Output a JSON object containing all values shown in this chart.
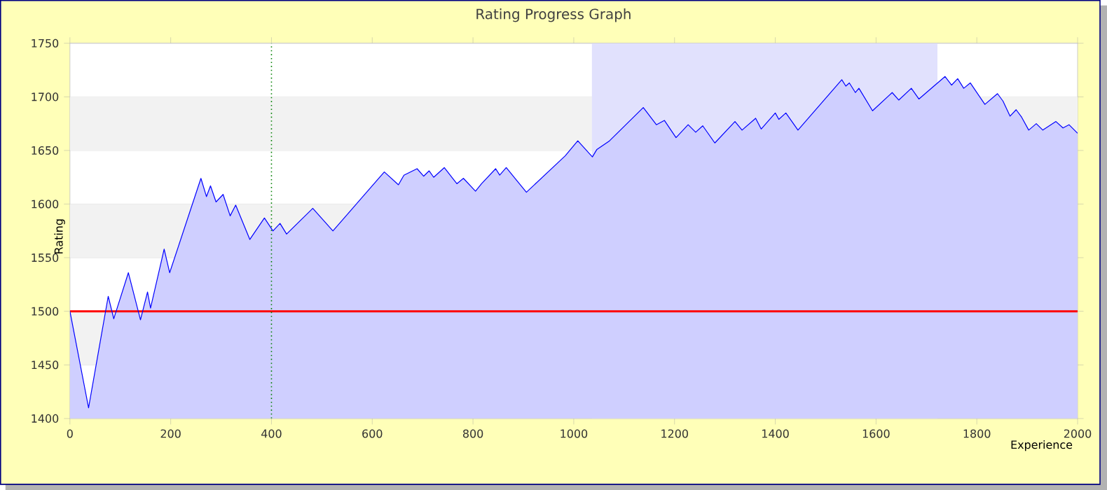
{
  "chart_data": {
    "type": "area",
    "title": "Rating Progress Graph",
    "xlabel": "Experience",
    "ylabel": "Rating",
    "xlim": [
      0,
      2000
    ],
    "ylim": [
      1400,
      1750
    ],
    "xticks": [
      0,
      200,
      400,
      600,
      800,
      1000,
      1200,
      1400,
      1600,
      1800,
      2000
    ],
    "yticks": [
      1400,
      1450,
      1500,
      1550,
      1600,
      1650,
      1700,
      1750
    ],
    "grid": "y",
    "ref_lines": [
      {
        "axis": "y",
        "value": 1500,
        "color": "#ff0000",
        "line_style": "solid"
      },
      {
        "axis": "x",
        "value": 400,
        "color": "#008000",
        "line_style": "dotted"
      }
    ],
    "bands": [
      {
        "axis": "x",
        "from": 1036,
        "to": 1722,
        "color": "#e1e1fd"
      }
    ],
    "series": [
      {
        "color": "#0000ff",
        "x": [
          0,
          37,
          76,
          87,
          116,
          140,
          154,
          160,
          187,
          198,
          260,
          271,
          279,
          290,
          304,
          318,
          329,
          357,
          386,
          403,
          417,
          430,
          482,
          522,
          624,
          652,
          663,
          689,
          702,
          713,
          722,
          743,
          768,
          781,
          805,
          817,
          845,
          853,
          866,
          906,
          983,
          1008,
          1037,
          1046,
          1071,
          1138,
          1164,
          1180,
          1203,
          1227,
          1242,
          1256,
          1280,
          1320,
          1334,
          1361,
          1372,
          1400,
          1407,
          1421,
          1445,
          1532,
          1540,
          1547,
          1559,
          1566,
          1593,
          1632,
          1645,
          1670,
          1685,
          1737,
          1750,
          1762,
          1774,
          1787,
          1816,
          1841,
          1852,
          1866,
          1878,
          1889,
          1903,
          1918,
          1931,
          1957,
          1971,
          1983,
          2000
        ],
        "values": [
          1500,
          1410,
          1514,
          1493,
          1536,
          1492,
          1518,
          1503,
          1558,
          1536,
          1624,
          1607,
          1617,
          1602,
          1609,
          1589,
          1599,
          1567,
          1587,
          1575,
          1582,
          1572,
          1596,
          1575,
          1630,
          1618,
          1627,
          1633,
          1626,
          1631,
          1625,
          1634,
          1619,
          1624,
          1612,
          1619,
          1633,
          1627,
          1634,
          1611,
          1645,
          1659,
          1644,
          1651,
          1659,
          1690,
          1674,
          1678,
          1662,
          1674,
          1667,
          1673,
          1657,
          1677,
          1669,
          1680,
          1670,
          1685,
          1679,
          1685,
          1669,
          1716,
          1710,
          1713,
          1704,
          1708,
          1687,
          1704,
          1697,
          1708,
          1698,
          1719,
          1711,
          1717,
          1708,
          1713,
          1693,
          1703,
          1696,
          1682,
          1688,
          1681,
          1669,
          1675,
          1669,
          1677,
          1671,
          1674,
          1666
        ]
      }
    ]
  }
}
